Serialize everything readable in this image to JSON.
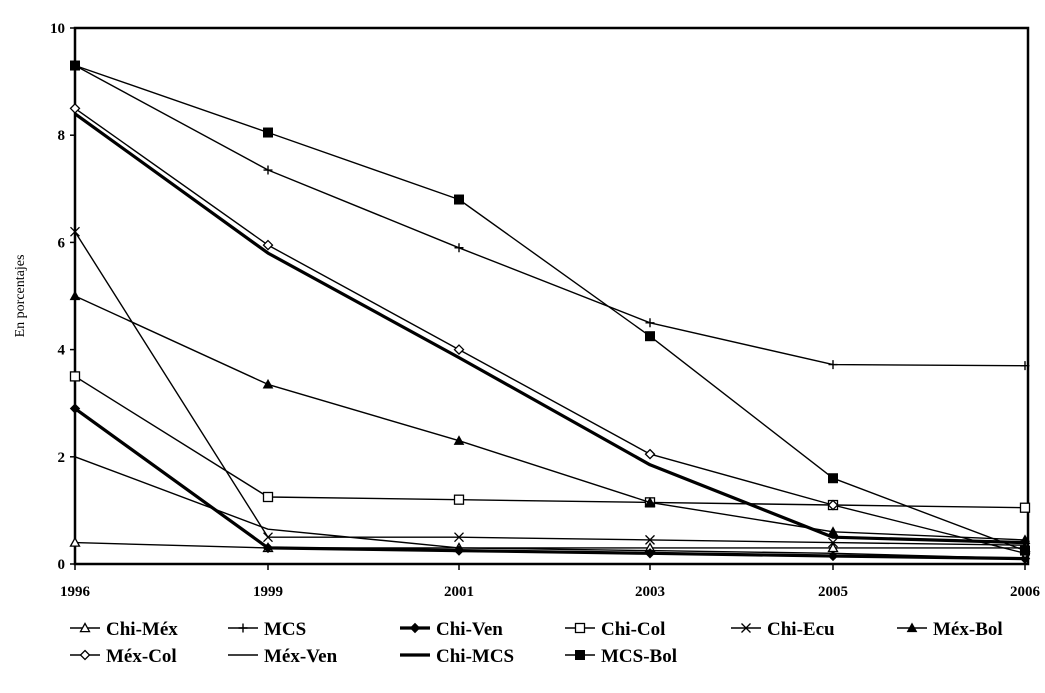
{
  "chart_data": {
    "type": "line",
    "title": "",
    "xlabel": "",
    "ylabel": "En porcentajes",
    "x": [
      "1996",
      "1999",
      "2001",
      "2003",
      "2005",
      "2006"
    ],
    "ylim": [
      0,
      10
    ],
    "yticks": [
      "0",
      "2",
      "4",
      "6",
      "8",
      "10"
    ],
    "grid": false,
    "legend_position": "bottom",
    "series": [
      {
        "name": "Chi-Méx",
        "marker": "triangle-open",
        "weight": "thin",
        "values": [
          0.4,
          0.3,
          0.3,
          0.3,
          0.3,
          0.3
        ]
      },
      {
        "name": "MCS",
        "marker": "plus",
        "weight": "thin",
        "values": [
          9.3,
          7.35,
          5.9,
          4.5,
          3.72,
          3.7
        ]
      },
      {
        "name": "Chi-Ven",
        "marker": "diamond-filled",
        "weight": "thick",
        "values": [
          2.9,
          0.3,
          0.25,
          0.2,
          0.15,
          0.1
        ]
      },
      {
        "name": "Chi-Col",
        "marker": "square-open",
        "weight": "thin",
        "values": [
          3.5,
          1.25,
          1.2,
          1.15,
          1.1,
          1.05
        ]
      },
      {
        "name": "Chi-Ecu",
        "marker": "x",
        "weight": "thin",
        "values": [
          6.2,
          0.5,
          0.5,
          0.45,
          0.4,
          0.35
        ]
      },
      {
        "name": "Méx-Bol",
        "marker": "triangle-filled",
        "weight": "thin",
        "values": [
          5.0,
          3.35,
          2.3,
          1.15,
          0.6,
          0.45
        ]
      },
      {
        "name": "Méx-Col",
        "marker": "diamond-open",
        "weight": "thin",
        "values": [
          8.5,
          5.95,
          4.0,
          2.05,
          1.1,
          0.2
        ]
      },
      {
        "name": "Méx-Ven",
        "marker": "none",
        "weight": "thin",
        "values": [
          2.0,
          0.65,
          0.3,
          0.25,
          0.2,
          0.1
        ]
      },
      {
        "name": "Chi-MCS",
        "marker": "none",
        "weight": "thick",
        "values": [
          8.4,
          5.8,
          3.85,
          1.85,
          0.5,
          0.4
        ]
      },
      {
        "name": "MCS-Bol",
        "marker": "square-filled",
        "weight": "thin",
        "values": [
          9.3,
          8.05,
          6.8,
          4.25,
          1.6,
          0.25
        ]
      }
    ]
  }
}
